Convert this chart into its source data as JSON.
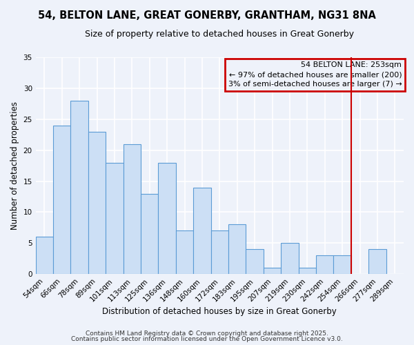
{
  "title": "54, BELTON LANE, GREAT GONERBY, GRANTHAM, NG31 8NA",
  "subtitle": "Size of property relative to detached houses in Great Gonerby",
  "xlabel": "Distribution of detached houses by size in Great Gonerby",
  "ylabel": "Number of detached properties",
  "bin_labels": [
    "54sqm",
    "66sqm",
    "78sqm",
    "89sqm",
    "101sqm",
    "113sqm",
    "125sqm",
    "136sqm",
    "148sqm",
    "160sqm",
    "172sqm",
    "183sqm",
    "195sqm",
    "207sqm",
    "219sqm",
    "230sqm",
    "242sqm",
    "254sqm",
    "266sqm",
    "277sqm",
    "289sqm"
  ],
  "bar_values": [
    6,
    24,
    28,
    23,
    18,
    21,
    13,
    18,
    7,
    14,
    7,
    8,
    4,
    1,
    5,
    1,
    3,
    3,
    0,
    4,
    0
  ],
  "bar_color": "#ccdff5",
  "bar_edge_color": "#5b9bd5",
  "vline_color": "#cc0000",
  "vline_idx": 17,
  "annotation_title": "54 BELTON LANE: 253sqm",
  "annotation_line1": "← 97% of detached houses are smaller (200)",
  "annotation_line2": "3% of semi-detached houses are larger (7) →",
  "annotation_box_color": "#cc0000",
  "ylim": [
    0,
    35
  ],
  "yticks": [
    0,
    5,
    10,
    15,
    20,
    25,
    30,
    35
  ],
  "footer_line1": "Contains HM Land Registry data © Crown copyright and database right 2025.",
  "footer_line2": "Contains public sector information licensed under the Open Government Licence v3.0.",
  "background_color": "#eef2fa",
  "grid_color": "#ffffff",
  "title_fontsize": 10.5,
  "subtitle_fontsize": 9,
  "axis_label_fontsize": 8.5,
  "tick_fontsize": 7.5,
  "annot_fontsize": 8,
  "footer_fontsize": 6.5
}
